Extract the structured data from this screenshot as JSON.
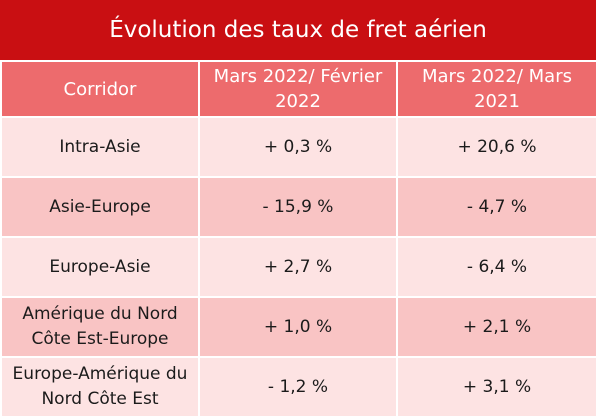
{
  "title": "Évolution des taux de fret aérien",
  "header": {
    "col1": "Corridor",
    "col2": "Mars 2022/ Février 2022",
    "col3": "Mars 2022/ Mars 2021"
  },
  "rows": [
    {
      "corridor": "Intra-Asie",
      "mom": "+ 0,3 %",
      "yoy": "+ 20,6 %"
    },
    {
      "corridor": "Asie-Europe",
      "mom": "- 15,9 %",
      "yoy": "- 4,7 %"
    },
    {
      "corridor": "Europe-Asie",
      "mom": "+ 2,7 %",
      "yoy": "- 6,4 %"
    },
    {
      "corridor": "Amérique du Nord Côte Est-Europe",
      "mom": "+ 1,0 %",
      "yoy": "+ 2,1 %"
    },
    {
      "corridor": "Europe-Amérique du Nord Côte Est",
      "mom": "- 1,2 %",
      "yoy": "+ 3,1 %"
    }
  ],
  "colors": {
    "title_bg": "#c90f12",
    "header_bg": "#ed6b6d",
    "row_light": "#fde3e3",
    "row_dark": "#f9c4c4"
  }
}
